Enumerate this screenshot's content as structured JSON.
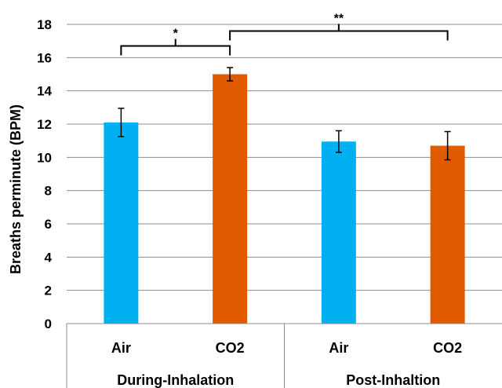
{
  "chart_data": {
    "type": "bar",
    "ylabel": "Breaths perminute (BPM)",
    "ylim": [
      0,
      18
    ],
    "yticks": [
      0,
      2,
      4,
      6,
      8,
      10,
      12,
      14,
      16,
      18
    ],
    "grid": true,
    "groups": [
      {
        "name": "During-Inhalation",
        "bars": [
          {
            "category": "Air",
            "value": 12.1,
            "error": 0.85,
            "color": "#00b0f0"
          },
          {
            "category": "CO2",
            "value": 15.0,
            "error": 0.4,
            "color": "#e05a00"
          }
        ]
      },
      {
        "name": "Post-Inhaltion",
        "bars": [
          {
            "category": "Air",
            "value": 10.95,
            "error": 0.65,
            "color": "#00b0f0"
          },
          {
            "category": "CO2",
            "value": 10.7,
            "error": 0.85,
            "color": "#e05a00"
          }
        ]
      }
    ],
    "annotations": [
      {
        "label": "*",
        "from": [
          0,
          0
        ],
        "to": [
          0,
          1
        ],
        "level": 16.7
      },
      {
        "label": "**",
        "from": [
          0,
          1
        ],
        "to": [
          1,
          1
        ],
        "level": 17.6
      }
    ]
  }
}
